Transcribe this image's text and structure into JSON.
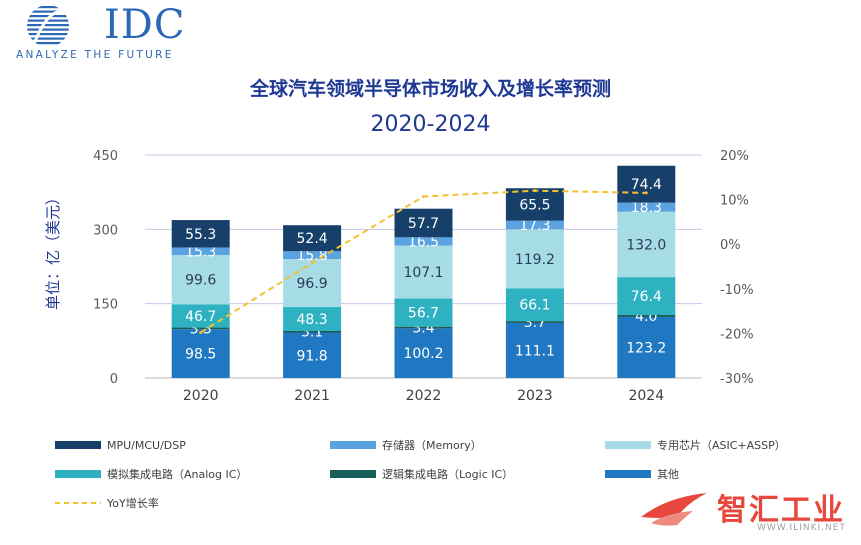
{
  "logo": {
    "name": "IDC",
    "tagline": "ANALYZE THE FUTURE"
  },
  "watermark": {
    "text": "智汇工业",
    "url": "WWW.ILINKI.NET"
  },
  "chart_data": {
    "type": "bar",
    "stacked": true,
    "title": "全球汽车领域半导体市场收入及增长率预测",
    "subtitle": "2020-2024",
    "ylabel": "单位：亿（美元）",
    "ylim": [
      0,
      450
    ],
    "yticks": [
      "0",
      "150",
      "300",
      "450"
    ],
    "y2lim": [
      -30,
      20
    ],
    "y2ticks": [
      "-30%",
      "-20%",
      "-10%",
      "0%",
      "10%",
      "20%"
    ],
    "grid": true,
    "legend_position": "bottom",
    "categories": [
      "2020",
      "2021",
      "2022",
      "2023",
      "2024"
    ],
    "series": [
      {
        "name": "其他",
        "color": "#1f78c1",
        "values": [
          98.5,
          91.8,
          100.2,
          111.1,
          123.2
        ]
      },
      {
        "name": "逻辑集成电路（Logic IC）",
        "color": "#1a5e59",
        "values": [
          3.3,
          3.1,
          3.4,
          3.7,
          4.0
        ]
      },
      {
        "name": "模拟集成电路（Analog IC）",
        "color": "#2eb2c1",
        "values": [
          46.7,
          48.3,
          56.7,
          66.1,
          76.4
        ]
      },
      {
        "name": "专用芯片（ASIC+ASSP）",
        "color": "#a6dce6",
        "values": [
          99.6,
          96.9,
          107.1,
          119.2,
          132.0
        ]
      },
      {
        "name": "存储器（Memory）",
        "color": "#5aa3e0",
        "values": [
          15.3,
          15.8,
          16.5,
          17.3,
          18.3
        ]
      },
      {
        "name": "MPU/MCU/DSP",
        "color": "#163f6a",
        "values": [
          55.3,
          52.4,
          57.7,
          65.5,
          74.4
        ]
      }
    ],
    "line": {
      "name": "YoY增长率",
      "color": "#f3c130",
      "axis": "right",
      "values": [
        -19.8,
        -4.2,
        10.7,
        12.0,
        11.5
      ]
    },
    "legend_order": [
      "MPU/MCU/DSP",
      "存储器（Memory）",
      "专用芯片（ASIC+ASSP）",
      "模拟集成电路（Analog IC）",
      "逻辑集成电路（Logic IC）",
      "其他",
      "YoY增长率"
    ]
  }
}
